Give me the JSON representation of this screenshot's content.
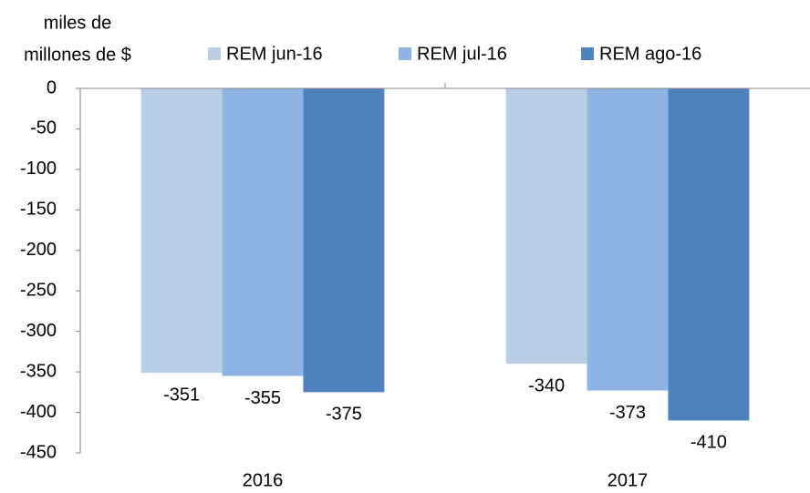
{
  "chart_data": {
    "type": "bar",
    "y_label": [
      "miles de",
      "millones de $"
    ],
    "categories": [
      "2016",
      "2017"
    ],
    "series": [
      {
        "name": "REM jun-16",
        "color": "#b9cde5",
        "values": [
          -351,
          -340
        ]
      },
      {
        "name": "REM jul-16",
        "color": "#8eb4e3",
        "values": [
          -355,
          -373
        ]
      },
      {
        "name": "REM ago-16",
        "color": "#4f81bd",
        "values": [
          -375,
          -410
        ]
      }
    ],
    "ylim": [
      -450,
      0
    ],
    "yticks": [
      0,
      -50,
      -100,
      -150,
      -200,
      -250,
      -300,
      -350,
      -400,
      -450
    ],
    "grid": false
  }
}
